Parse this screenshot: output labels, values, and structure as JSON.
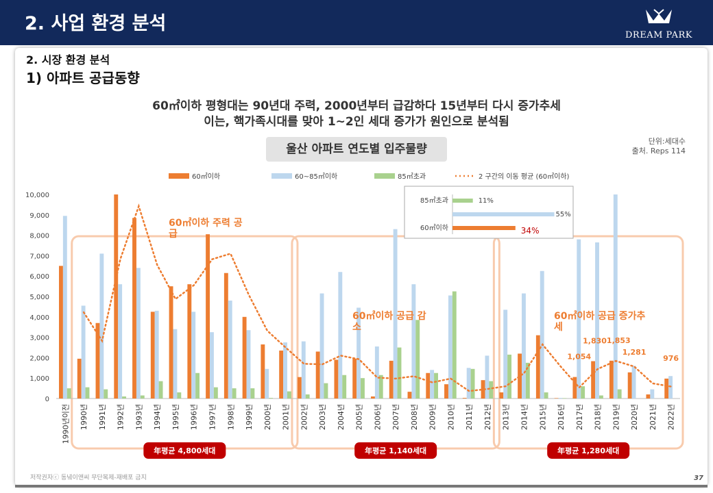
{
  "header": {
    "title": "2. 사업 환경 분석",
    "logo_text": "DREAM PARK"
  },
  "section": {
    "subtitle": "2. 시장 환경 분석",
    "heading": "1) 아파트 공급동향"
  },
  "headline": [
    "60㎡이하 평형대는 90년대 주력, 2000년부터 급감하다 15년부터 다시 증가추세",
    "이는, 핵가족시대를 맞아 1~2인 세대 증가가 원인으로 분석됨"
  ],
  "unit_note": [
    "단위:세대수",
    "출처. Reps 114"
  ],
  "footer": {
    "copyright": "저작권자ⓒ 동녘이앤씨 무단복제-재배포 금지",
    "page": "37"
  },
  "chart_data": {
    "type": "bar",
    "title": "울산 아파트 연도별 입주물량",
    "categories": [
      "1990년이전",
      "1990년",
      "1991년",
      "1992년",
      "1993년",
      "1994년",
      "1995년",
      "1996년",
      "1997년",
      "1998년",
      "1999년",
      "2000년",
      "2001년",
      "2002년",
      "2003년",
      "2004년",
      "2005년",
      "2006년",
      "2007년",
      "2008년",
      "2009년",
      "2010년",
      "2011년",
      "2012년",
      "2013년",
      "2014년",
      "2015년",
      "2016년",
      "2017년",
      "2018년",
      "2019년",
      "2020년",
      "2021년",
      "2022년"
    ],
    "series": [
      {
        "name": "60㎡이하",
        "color": "#ed7d31",
        "values": [
          6500,
          1950,
          3700,
          10000,
          8850,
          4250,
          5500,
          5600,
          8050,
          6150,
          4000,
          2650,
          2350,
          1050,
          2300,
          1900,
          1950,
          100,
          1850,
          330,
          1250,
          700,
          30,
          900,
          300,
          2200,
          3100,
          20,
          1054,
          1830,
          1853,
          1281,
          200,
          976
        ]
      },
      {
        "name": "60~85㎡이하",
        "color": "#bdd7ee",
        "values": [
          8950,
          4550,
          7100,
          5600,
          6400,
          4300,
          3400,
          4250,
          3250,
          4800,
          3350,
          1450,
          2750,
          2800,
          5150,
          6200,
          4450,
          2550,
          8300,
          5600,
          1400,
          5050,
          1500,
          2100,
          4350,
          5150,
          6250,
          30,
          7800,
          7650,
          10000,
          1600,
          450,
          1100
        ]
      },
      {
        "name": "85㎡초과",
        "color": "#a9d18e",
        "values": [
          500,
          550,
          450,
          100,
          150,
          850,
          300,
          1250,
          550,
          500,
          500,
          30,
          350,
          200,
          750,
          1150,
          1000,
          1150,
          2500,
          3850,
          1250,
          5250,
          1450,
          850,
          2150,
          1750,
          300,
          20,
          600,
          150,
          450,
          0,
          0,
          0
        ]
      }
    ],
    "moving_average": {
      "name": "2 구간의 이동 평균 (60㎡이하)",
      "color": "#ed7d31",
      "values": [
        null,
        4225,
        2825,
        6850,
        9425,
        6550,
        4875,
        5550,
        6825,
        7100,
        5075,
        3325,
        2500,
        1700,
        1675,
        2100,
        1925,
        1025,
        975,
        1090,
        790,
        975,
        365,
        465,
        600,
        1250,
        2650,
        1560,
        537,
        1442,
        1841,
        1567,
        740,
        588
      ]
    },
    "ylim": [
      0,
      10000
    ],
    "yticks": [
      "0",
      "1,000",
      "2,000",
      "3,000",
      "4,000",
      "5,000",
      "6,000",
      "7,000",
      "8,000",
      "9,000",
      "10,000"
    ],
    "data_labels": [
      {
        "category": "2017년",
        "text": "1,054"
      },
      {
        "category": "2018년",
        "text": "1,830"
      },
      {
        "category": "2019년",
        "text": "1,853"
      },
      {
        "category": "2020년",
        "text": "1,281"
      },
      {
        "category": "2022년",
        "text": "976"
      }
    ],
    "periods": [
      {
        "from": "1990년",
        "to": "2001년",
        "annotation": "60㎡이하 주력 공급",
        "average_label": "年평균  4,800세대"
      },
      {
        "from": "2002년",
        "to": "2012년",
        "annotation": "60㎡이하 공급 감소",
        "average_label": "年평균  1,140세대"
      },
      {
        "from": "2013년",
        "to": "2022년",
        "annotation": "60㎡이하 공급 증가추세",
        "average_label": "年평균  1,280세대"
      }
    ],
    "inset": {
      "rows": [
        {
          "label": "85㎡초과",
          "value": 11,
          "text": "11%",
          "color": "#a9d18e"
        },
        {
          "label": "",
          "value": 55,
          "text": "55%",
          "color": "#bdd7ee"
        },
        {
          "label": "60㎡이하",
          "value": 34,
          "text": "34%",
          "color": "#ed7d31"
        }
      ]
    }
  }
}
